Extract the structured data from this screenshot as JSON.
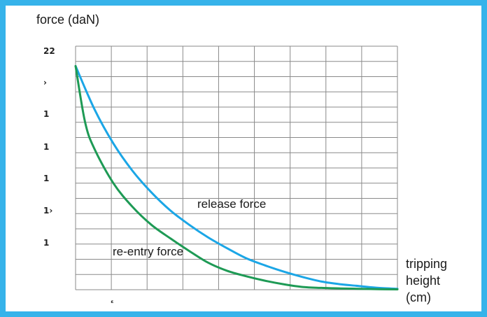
{
  "chart_data": {
    "type": "line",
    "title": "",
    "ylabel": "force (daN)",
    "xlabel": "tripping\nheight\n(cm)",
    "xlabel_lines": [
      "tripping",
      "height",
      "(cm)"
    ],
    "y_tick_labels": [
      "22",
      "›",
      "1",
      "1",
      "1",
      "1›",
      "1"
    ],
    "x_tick_labels": [
      "ᵋ"
    ],
    "grid": true,
    "xlim": [
      0,
      17
    ],
    "ylim": [
      0,
      13.5
    ],
    "series": [
      {
        "name": "release force",
        "color": "#1ba6e6",
        "x": [
          0,
          1,
          2,
          3,
          4,
          5,
          6,
          7,
          8,
          9,
          10,
          11,
          12,
          13,
          14,
          15,
          16,
          17
        ],
        "y": [
          12.4,
          10.0,
          8.1,
          6.6,
          5.4,
          4.4,
          3.6,
          2.9,
          2.3,
          1.75,
          1.35,
          1.0,
          0.7,
          0.45,
          0.3,
          0.2,
          0.1,
          0.05
        ]
      },
      {
        "name": "re-entry force",
        "color": "#1e9a55",
        "x": [
          0,
          0.5,
          1,
          2,
          3,
          4,
          5,
          6,
          7,
          8,
          9,
          10,
          11,
          12,
          13,
          14,
          15,
          16,
          17
        ],
        "y": [
          12.4,
          9.3,
          7.8,
          5.9,
          4.6,
          3.6,
          2.85,
          2.15,
          1.5,
          1.05,
          0.75,
          0.5,
          0.3,
          0.15,
          0.1,
          0.07,
          0.05,
          0.03,
          0.02
        ]
      }
    ],
    "annotations": [
      "release force",
      "re-entry force"
    ]
  }
}
